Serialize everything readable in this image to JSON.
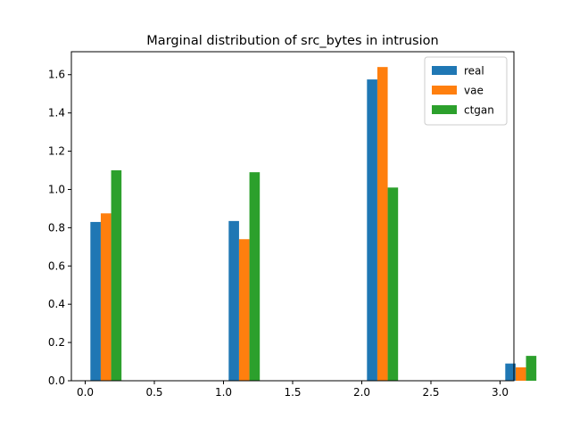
{
  "chart_data": {
    "type": "bar",
    "title": "Marginal distribution of src_bytes in intrusion",
    "xlabel": "",
    "ylabel": "",
    "xlim": [
      -0.1,
      3.1
    ],
    "ylim": [
      0,
      1.72
    ],
    "x_ticks": [
      0.0,
      0.5,
      1.0,
      1.5,
      2.0,
      2.5,
      3.0
    ],
    "x_tick_labels": [
      "0.0",
      "0.5",
      "1.0",
      "1.5",
      "2.0",
      "2.5",
      "3.0"
    ],
    "y_ticks": [
      0.0,
      0.2,
      0.4,
      0.6,
      0.8,
      1.0,
      1.2,
      1.4,
      1.6
    ],
    "y_tick_labels": [
      "0.0",
      "0.2",
      "0.4",
      "0.6",
      "0.8",
      "1.0",
      "1.2",
      "1.4",
      "1.6"
    ],
    "bin_centers": [
      0.0,
      1.0,
      2.0,
      3.0
    ],
    "bar_width": 0.075,
    "grid": false,
    "legend_position": "top-right",
    "series": [
      {
        "name": "real",
        "color": "#1f77b4",
        "values": [
          0.83,
          0.835,
          1.575,
          0.09
        ],
        "offset": 0.075
      },
      {
        "name": "vae",
        "color": "#ff7f0e",
        "values": [
          0.875,
          0.74,
          1.64,
          0.07
        ],
        "offset": 0.15
      },
      {
        "name": "ctgan",
        "color": "#2ca02c",
        "values": [
          1.1,
          1.09,
          1.01,
          0.13
        ],
        "offset": 0.225
      }
    ]
  }
}
